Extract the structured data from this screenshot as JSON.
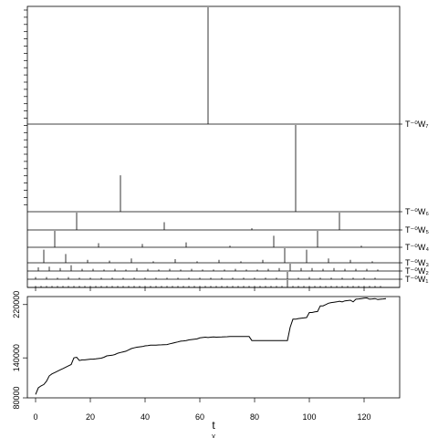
{
  "chart_data": [
    {
      "type": "spikes",
      "xlim": [
        -2,
        134
      ],
      "panels": [
        {
          "label": "T⁻⁰W₇",
          "heights": [],
          "spikes": [
            {
              "x": 64,
              "h": 1.0
            }
          ]
        },
        {
          "label": "T⁻⁰W₇",
          "heights": [],
          "spikes": [
            {
              "x": 32,
              "h": 0.42
            },
            {
              "x": 96,
              "h": 1.0
            }
          ]
        },
        {
          "label": "T⁻⁰W₆",
          "spikes": [
            {
              "x": 16,
              "h": 1.0
            },
            {
              "x": 48,
              "h": 0.45
            },
            {
              "x": 80,
              "h": 0.1
            },
            {
              "x": 112,
              "h": 1.0
            }
          ]
        },
        {
          "label": "T⁻⁰W₅",
          "spikes": [
            {
              "x": 8,
              "h": 1.0
            },
            {
              "x": 24,
              "h": 0.25
            },
            {
              "x": 40,
              "h": 0.2
            },
            {
              "x": 56,
              "h": 0.3
            },
            {
              "x": 72,
              "h": 0.1
            },
            {
              "x": 88,
              "h": 0.7
            },
            {
              "x": 104,
              "h": 1.0
            },
            {
              "x": 120,
              "h": 0.1
            }
          ]
        },
        {
          "label": "T⁻⁰W₄",
          "spikes": [
            {
              "x": 4,
              "h": 0.9
            },
            {
              "x": 12,
              "h": 0.6
            },
            {
              "x": 20,
              "h": 0.2
            },
            {
              "x": 28,
              "h": 0.15
            },
            {
              "x": 36,
              "h": 0.3
            },
            {
              "x": 44,
              "h": 0.1
            },
            {
              "x": 52,
              "h": 0.25
            },
            {
              "x": 60,
              "h": 0.1
            },
            {
              "x": 68,
              "h": 0.2
            },
            {
              "x": 76,
              "h": 0.1
            },
            {
              "x": 84,
              "h": 0.2
            },
            {
              "x": 92,
              "h": 1.0
            },
            {
              "x": 100,
              "h": 0.9
            },
            {
              "x": 108,
              "h": 0.3
            },
            {
              "x": 116,
              "h": 0.2
            },
            {
              "x": 124,
              "h": 0.1
            }
          ]
        },
        {
          "label": "T⁻⁰W₃",
          "spikes": [
            {
              "x": 2,
              "h": 0.5
            },
            {
              "x": 6,
              "h": 0.6
            },
            {
              "x": 10,
              "h": 0.4
            },
            {
              "x": 14,
              "h": 0.8
            },
            {
              "x": 18,
              "h": 0.3
            },
            {
              "x": 22,
              "h": 0.3
            },
            {
              "x": 26,
              "h": 0.2
            },
            {
              "x": 30,
              "h": 0.3
            },
            {
              "x": 34,
              "h": 0.2
            },
            {
              "x": 38,
              "h": 0.4
            },
            {
              "x": 42,
              "h": 0.3
            },
            {
              "x": 46,
              "h": 0.2
            },
            {
              "x": 50,
              "h": 0.3
            },
            {
              "x": 54,
              "h": 0.2
            },
            {
              "x": 58,
              "h": 0.3
            },
            {
              "x": 62,
              "h": 0.2
            },
            {
              "x": 66,
              "h": 0.2
            },
            {
              "x": 70,
              "h": 0.2
            },
            {
              "x": 74,
              "h": 0.3
            },
            {
              "x": 78,
              "h": 0.2
            },
            {
              "x": 82,
              "h": 0.2
            },
            {
              "x": 86,
              "h": 0.3
            },
            {
              "x": 90,
              "h": 0.4
            },
            {
              "x": 94,
              "h": 1.0
            },
            {
              "x": 98,
              "h": 0.4
            },
            {
              "x": 102,
              "h": 0.4
            },
            {
              "x": 106,
              "h": 0.3
            },
            {
              "x": 110,
              "h": 0.4
            },
            {
              "x": 114,
              "h": 0.3
            },
            {
              "x": 118,
              "h": 0.3
            },
            {
              "x": 122,
              "h": 0.3
            },
            {
              "x": 126,
              "h": 0.2
            }
          ]
        },
        {
          "label": "T⁻⁰W₂",
          "spikes": [
            {
              "x": 1,
              "h": 0.3
            },
            {
              "x": 5,
              "h": 0.3
            },
            {
              "x": 9,
              "h": 0.2
            },
            {
              "x": 13,
              "h": 0.3
            },
            {
              "x": 17,
              "h": 0.2
            },
            {
              "x": 21,
              "h": 0.2
            },
            {
              "x": 25,
              "h": 0.2
            },
            {
              "x": 29,
              "h": 0.2
            },
            {
              "x": 33,
              "h": 0.2
            },
            {
              "x": 37,
              "h": 0.2
            },
            {
              "x": 41,
              "h": 0.2
            },
            {
              "x": 45,
              "h": 0.2
            },
            {
              "x": 49,
              "h": 0.2
            },
            {
              "x": 53,
              "h": 0.2
            },
            {
              "x": 57,
              "h": 0.2
            },
            {
              "x": 61,
              "h": 0.2
            },
            {
              "x": 65,
              "h": 0.2
            },
            {
              "x": 69,
              "h": 0.2
            },
            {
              "x": 73,
              "h": 0.2
            },
            {
              "x": 77,
              "h": 0.2
            },
            {
              "x": 81,
              "h": 0.2
            },
            {
              "x": 85,
              "h": 0.2
            },
            {
              "x": 89,
              "h": 0.2
            },
            {
              "x": 93,
              "h": 1.0
            },
            {
              "x": 97,
              "h": 0.2
            },
            {
              "x": 101,
              "h": 0.3
            },
            {
              "x": 105,
              "h": 0.2
            },
            {
              "x": 109,
              "h": 0.2
            },
            {
              "x": 113,
              "h": 0.2
            },
            {
              "x": 117,
              "h": 0.2
            },
            {
              "x": 121,
              "h": 0.2
            },
            {
              "x": 125,
              "h": 0.2
            }
          ]
        },
        {
          "label": "T⁻⁰W₁",
          "spikes": [
            {
              "x": 1,
              "h": 0.2
            },
            {
              "x": 3,
              "h": 0.2
            },
            {
              "x": 5,
              "h": 0.2
            },
            {
              "x": 7,
              "h": 0.2
            },
            {
              "x": 9,
              "h": 0.2
            },
            {
              "x": 11,
              "h": 0.2
            },
            {
              "x": 13,
              "h": 0.2
            },
            {
              "x": 15,
              "h": 0.2
            },
            {
              "x": 17,
              "h": 0.2
            },
            {
              "x": 19,
              "h": 0.2
            },
            {
              "x": 21,
              "h": 0.2
            },
            {
              "x": 23,
              "h": 0.2
            },
            {
              "x": 25,
              "h": 0.2
            },
            {
              "x": 27,
              "h": 0.2
            },
            {
              "x": 29,
              "h": 0.2
            },
            {
              "x": 31,
              "h": 0.2
            },
            {
              "x": 33,
              "h": 0.2
            },
            {
              "x": 35,
              "h": 0.2
            },
            {
              "x": 37,
              "h": 0.2
            },
            {
              "x": 39,
              "h": 0.2
            },
            {
              "x": 41,
              "h": 0.2
            },
            {
              "x": 43,
              "h": 0.2
            },
            {
              "x": 45,
              "h": 0.2
            },
            {
              "x": 47,
              "h": 0.2
            },
            {
              "x": 49,
              "h": 0.2
            },
            {
              "x": 51,
              "h": 0.2
            },
            {
              "x": 53,
              "h": 0.2
            },
            {
              "x": 55,
              "h": 0.2
            },
            {
              "x": 57,
              "h": 0.2
            },
            {
              "x": 59,
              "h": 0.2
            },
            {
              "x": 61,
              "h": 0.2
            },
            {
              "x": 63,
              "h": 0.2
            },
            {
              "x": 65,
              "h": 0.2
            },
            {
              "x": 67,
              "h": 0.2
            },
            {
              "x": 69,
              "h": 0.2
            },
            {
              "x": 71,
              "h": 0.2
            },
            {
              "x": 73,
              "h": 0.2
            },
            {
              "x": 75,
              "h": 0.2
            },
            {
              "x": 77,
              "h": 0.2
            },
            {
              "x": 79,
              "h": 0.2
            },
            {
              "x": 81,
              "h": 0.2
            },
            {
              "x": 83,
              "h": 0.2
            },
            {
              "x": 85,
              "h": 0.2
            },
            {
              "x": 87,
              "h": 0.2
            },
            {
              "x": 89,
              "h": 0.2
            },
            {
              "x": 91,
              "h": 0.2
            },
            {
              "x": 93,
              "h": 1.0
            },
            {
              "x": 95,
              "h": 0.2
            },
            {
              "x": 97,
              "h": 0.2
            },
            {
              "x": 99,
              "h": 0.2
            },
            {
              "x": 101,
              "h": 0.2
            },
            {
              "x": 103,
              "h": 0.2
            },
            {
              "x": 105,
              "h": 0.2
            },
            {
              "x": 107,
              "h": 0.2
            },
            {
              "x": 109,
              "h": 0.2
            },
            {
              "x": 111,
              "h": 0.2
            },
            {
              "x": 113,
              "h": 0.2
            },
            {
              "x": 115,
              "h": 0.2
            },
            {
              "x": 117,
              "h": 0.2
            },
            {
              "x": 119,
              "h": 0.2
            },
            {
              "x": 121,
              "h": 0.2
            },
            {
              "x": 123,
              "h": 0.2
            },
            {
              "x": 125,
              "h": 0.2
            },
            {
              "x": 127,
              "h": 0.2
            }
          ]
        }
      ],
      "labels_right": [
        "T⁻⁰W₇",
        "T⁻⁰W₆",
        "T⁻⁰W₅",
        "T⁻⁰W₄",
        "T⁻⁰W₃",
        "T⁻⁰W₂",
        "T⁻⁰W₁"
      ]
    },
    {
      "type": "line",
      "xlabel": "t",
      "xlabel_sub": "v",
      "xlim": [
        -3,
        133
      ],
      "ylim": [
        80000,
        232000
      ],
      "xticks": [
        0,
        20,
        40,
        60,
        80,
        100,
        120
      ],
      "yticks": [
        80000,
        140000,
        220000
      ],
      "x": [
        0,
        1,
        2,
        3,
        4,
        5,
        6,
        7,
        8,
        9,
        10,
        11,
        12,
        13,
        14,
        15,
        16,
        17,
        18,
        19,
        20,
        21,
        22,
        23,
        24,
        25,
        26,
        27,
        28,
        29,
        30,
        31,
        32,
        33,
        34,
        35,
        36,
        37,
        38,
        39,
        40,
        41,
        42,
        43,
        44,
        45,
        46,
        47,
        48,
        49,
        50,
        51,
        52,
        53,
        54,
        55,
        56,
        57,
        58,
        59,
        60,
        61,
        62,
        63,
        64,
        65,
        66,
        67,
        68,
        69,
        70,
        71,
        72,
        73,
        74,
        75,
        76,
        77,
        78,
        79,
        80,
        81,
        82,
        83,
        84,
        85,
        86,
        87,
        88,
        89,
        90,
        91,
        92,
        93,
        94,
        95,
        96,
        97,
        98,
        99,
        100,
        101,
        102,
        103,
        104,
        105,
        106,
        107,
        108,
        109,
        110,
        111,
        112,
        113,
        114,
        115,
        116,
        117,
        118,
        119,
        120,
        121,
        122,
        123,
        124,
        125,
        126,
        127,
        128
      ],
      "values": [
        85000,
        95000,
        98000,
        100000,
        105000,
        113000,
        116000,
        118000,
        120000,
        122000,
        124000,
        126000,
        128000,
        130000,
        140000,
        141000,
        136000,
        137000,
        137000,
        137500,
        138000,
        138000,
        138500,
        139000,
        139500,
        141000,
        143000,
        143500,
        144000,
        145000,
        147000,
        148000,
        149000,
        150000,
        152000,
        154000,
        155000,
        156000,
        156500,
        157000,
        158000,
        158500,
        159000,
        159000,
        159200,
        159400,
        159600,
        159800,
        160000,
        161000,
        162000,
        163000,
        164000,
        165000,
        165500,
        166000,
        167000,
        167500,
        168000,
        168500,
        170000,
        170500,
        171000,
        170500,
        171000,
        171500,
        171000,
        171200,
        171400,
        171600,
        171800,
        172000,
        172000,
        172000,
        172000,
        172000,
        172000,
        172000,
        172000,
        166000,
        166000,
        166000,
        166000,
        166000,
        166000,
        166000,
        166000,
        166000,
        166000,
        166000,
        166000,
        166000,
        166000,
        186000,
        198000,
        198000,
        199000,
        199500,
        200000,
        200500,
        208000,
        208000,
        209000,
        209500,
        218000,
        218000,
        220000,
        222000,
        223000,
        223500,
        224000,
        225000,
        224000,
        225500,
        226000,
        226500,
        224000,
        228000,
        228500,
        229000,
        229500,
        230000,
        228000,
        228500,
        229000,
        227500,
        228000,
        228500,
        229000
      ]
    }
  ]
}
